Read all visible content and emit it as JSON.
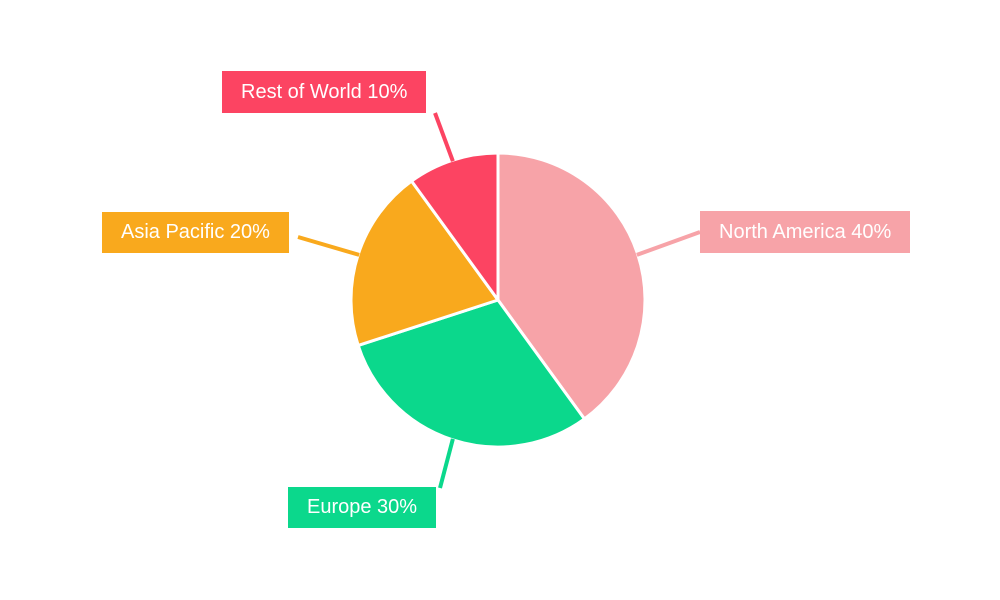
{
  "page": {
    "background": "#FFFFFF"
  },
  "chart_data": {
    "type": "pie",
    "title": "",
    "labels": [
      "North America",
      "Europe",
      "Asia Pacific",
      "Rest of World"
    ],
    "values": [
      40,
      30,
      20,
      10
    ],
    "unit": "%",
    "colors": [
      "#F7A3A8",
      "#0BD88C",
      "#F9A91D",
      "#FC4462"
    ],
    "slice_label_texts": [
      "North America 40%",
      "Europe 30%",
      "Asia Pacific 20%",
      "Rest of World 10%"
    ],
    "label_text_color": "#FFFFFF",
    "start_angle": "12 o'clock",
    "direction": "clockwise",
    "legend_position": "none",
    "slice_separator_color": "#FFFFFF"
  }
}
